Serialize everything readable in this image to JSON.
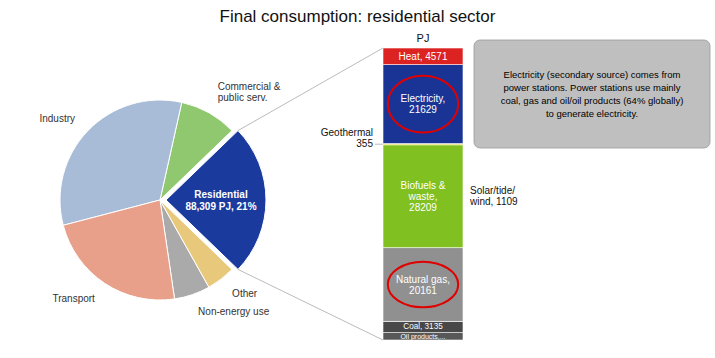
{
  "chart_data": [
    {
      "type": "pie",
      "title": "Final consumption: residential sector",
      "categories": [
        "Non-energy use",
        "Other",
        "Residential\n88,309 PJ, 21%",
        "Commercial &\npublic serv.",
        "Industry",
        "Transport"
      ],
      "values": [
        5,
        4,
        21,
        8,
        28,
        20
      ],
      "colors": [
        "#aaaaaa",
        "#e8c87a",
        "#1a3a9e",
        "#90c870",
        "#a8bcd8",
        "#e8a08a"
      ]
    },
    {
      "type": "bar",
      "stacked": true,
      "categories": [
        null
      ],
      "ylabel": "PJ",
      "ylim": [
        0,
        80060
      ],
      "tick_labels": false,
      "series": [
        {
          "name": "Heat, 4571",
          "color": "#dd2222",
          "values": [
            4571
          ]
        },
        {
          "name": "Electricity,\n21629",
          "color": "#1a3496",
          "values": [
            21629
          ]
        },
        {
          "name": "Geothermal\n355",
          "color": "#e8d820",
          "values": [
            355
          ]
        },
        {
          "name": "Biofuels &\nwaste,\n28209",
          "color": "#80c020",
          "values": [
            28209
          ]
        },
        {
          "name": "Natural gas,\n20161",
          "color": "#909090",
          "values": [
            20161
          ]
        },
        {
          "name": "Coal, 3135",
          "color": "#484848",
          "values": [
            3135
          ]
        },
        {
          "name": "Oil products,...",
          "color": "#585858",
          "values": [
            2000
          ]
        }
      ],
      "annotations": [
        "Solar/tide/\nwind, 1109",
        "Electricity (secondary source) comes from\npower stations.  Power stations use mainly\ncoal, gas and oil/oil products (64% globally)\nto generate electricity."
      ]
    }
  ]
}
